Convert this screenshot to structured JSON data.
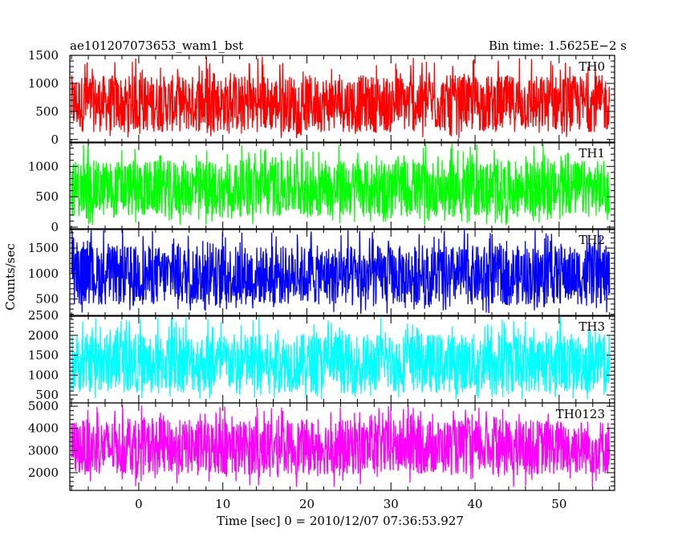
{
  "header": {
    "title": "ae101207073653_wam1_bst",
    "bin_time": "Bin time: 1.5625E−2 s"
  },
  "chart_data": {
    "type": "line",
    "title": "ae101207073653_wam1_bst",
    "subtitle": "Bin time: 1.5625E−2 s",
    "xlabel": "Time [sec] 0 = 2010/12/07 07:36:53.927",
    "ylabel": "Counts/sec",
    "xlim": [
      -8.2,
      56.6
    ],
    "data_xrange": [
      -8.0,
      56.0
    ],
    "x_ticks": [
      0,
      10,
      20,
      30,
      40,
      50
    ],
    "x_tick_labels": [
      "0",
      "10",
      "20",
      "30",
      "40",
      "50"
    ],
    "grid": false,
    "panels": [
      {
        "name": "TH0",
        "color": "#ff0000",
        "ylim": [
          -60,
          1500
        ],
        "y_ticks": [
          0,
          500,
          1000,
          1500
        ],
        "y_tick_labels": [
          "0",
          "500",
          "1000",
          "1500"
        ],
        "mean": 620,
        "typical_min": 130,
        "typical_max": 1150,
        "peak": 1500,
        "trough": 20
      },
      {
        "name": "TH1",
        "color": "#00ff00",
        "ylim": [
          -40,
          1400
        ],
        "y_ticks": [
          0,
          500,
          1000
        ],
        "y_tick_labels": [
          "0",
          "500",
          "1000"
        ],
        "mean": 640,
        "typical_min": 170,
        "typical_max": 1100,
        "peak": 1380,
        "trough": 30
      },
      {
        "name": "TH2",
        "color": "#0000ff",
        "ylim": [
          160,
          1880
        ],
        "y_ticks": [
          500,
          1000,
          1500
        ],
        "y_tick_labels": [
          "500",
          "1000",
          "1500"
        ],
        "mean": 950,
        "typical_min": 380,
        "typical_max": 1550,
        "peak": 1870,
        "trough": 200
      },
      {
        "name": "TH3",
        "color": "#00ffff",
        "ylim": [
          300,
          2500
        ],
        "y_ticks": [
          500,
          1000,
          1500,
          2000,
          2500
        ],
        "y_tick_labels": [
          "500",
          "1000",
          "1500",
          "2000",
          "2500"
        ],
        "mean": 1280,
        "typical_min": 560,
        "typical_max": 2050,
        "peak": 2480,
        "trough": 380
      },
      {
        "name": "TH0123",
        "color": "#ff00ff",
        "ylim": [
          1200,
          5150
        ],
        "y_ticks": [
          2000,
          3000,
          4000,
          5000
        ],
        "y_tick_labels": [
          "2000",
          "3000",
          "4000",
          "5000"
        ],
        "mean": 3100,
        "typical_min": 1900,
        "typical_max": 4400,
        "peak": 5050,
        "trough": 1350
      }
    ]
  }
}
